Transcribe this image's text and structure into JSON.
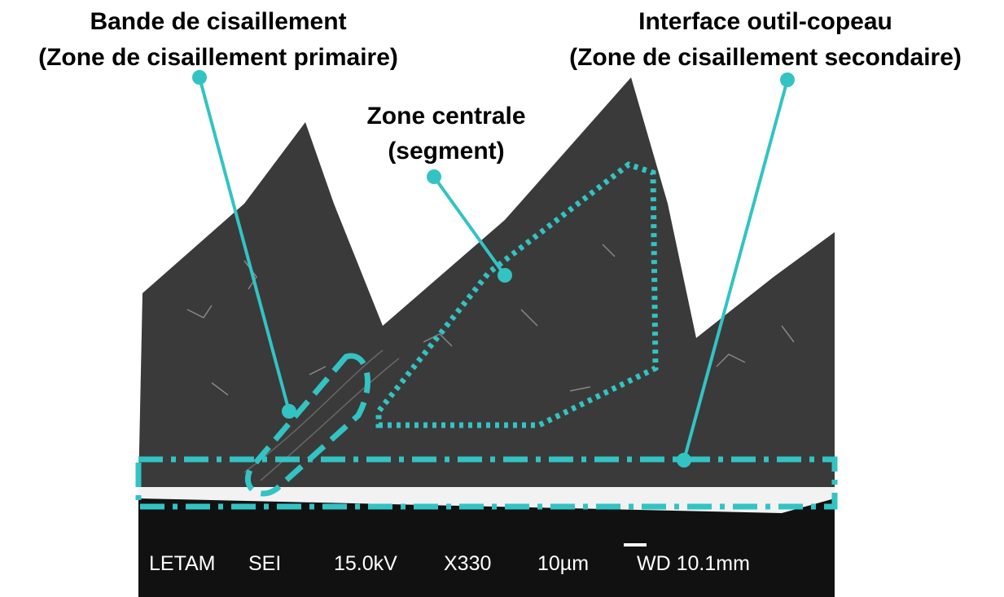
{
  "annotations": [
    {
      "lines": [
        "Bande de cisaillement",
        "(Zone de cisaillement primaire)"
      ]
    },
    {
      "lines": [
        "Interface outil-copeau",
        "(Zone de cisaillement secondaire)"
      ]
    },
    {
      "lines": [
        "Zone centrale",
        "(segment)"
      ]
    }
  ],
  "info_bar": [
    "LETAM",
    "SEI",
    "15.0kV",
    "X330",
    "10µm",
    "WD 10.1mm"
  ]
}
